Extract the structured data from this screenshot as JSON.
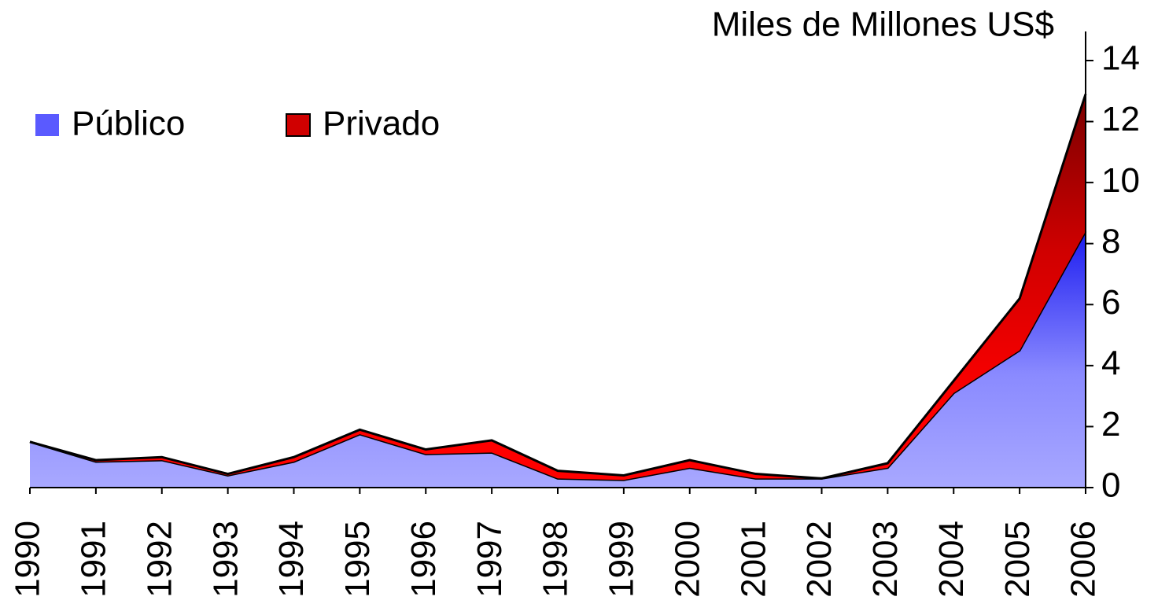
{
  "chart_data": {
    "type": "stacked_area",
    "title": "Miles de Millones US$",
    "categories": [
      "1990",
      "1991",
      "1992",
      "1993",
      "1994",
      "1995",
      "1996",
      "1997",
      "1998",
      "1999",
      "2000",
      "2001",
      "2002",
      "2003",
      "2004",
      "2005",
      "2006"
    ],
    "series": [
      {
        "name": "Público",
        "color": "#2a2aff",
        "values": [
          1.5,
          0.85,
          0.9,
          0.4,
          0.85,
          1.75,
          1.1,
          1.15,
          0.3,
          0.25,
          0.65,
          0.3,
          0.3,
          0.65,
          3.1,
          4.5,
          8.4
        ]
      },
      {
        "name": "Privado",
        "color": "#e00000",
        "values": [
          0,
          0.05,
          0.1,
          0.05,
          0.15,
          0.15,
          0.15,
          0.4,
          0.25,
          0.15,
          0.25,
          0.15,
          0,
          0.15,
          0.4,
          1.7,
          4.5
        ]
      }
    ],
    "ylim": [
      0,
      14
    ],
    "yticks": [
      0,
      2,
      4,
      6,
      8,
      10,
      12,
      14
    ],
    "y_axis_side": "right",
    "legend": "top-left"
  }
}
